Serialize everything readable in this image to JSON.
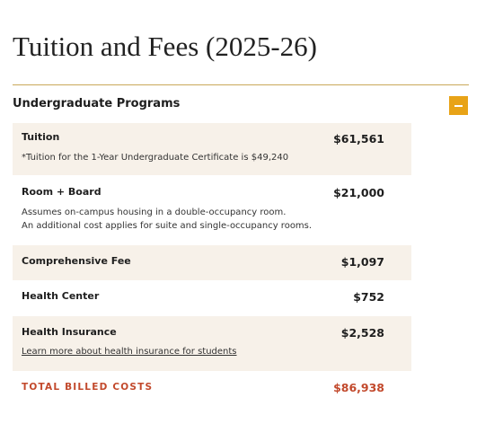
{
  "header": {
    "title": "Tuition and Fees (2025-26)"
  },
  "section": {
    "title": "Undergraduate Programs",
    "rows": [
      {
        "label": "Tuition",
        "amount": "$61,561",
        "notes": [
          "*Tuition for the 1-Year Undergraduate Certificate is $49,240"
        ]
      },
      {
        "label": "Room + Board",
        "amount": "$21,000",
        "notes": [
          "Assumes on-campus housing in a double-occupancy room.",
          "An additional cost applies for suite and single-occupancy rooms."
        ]
      },
      {
        "label": "Comprehensive Fee",
        "amount": "$1,097"
      },
      {
        "label": "Health Center",
        "amount": "$752"
      },
      {
        "label": "Health Insurance",
        "amount": "$2,528",
        "link": "Learn more about health insurance for students"
      }
    ],
    "total": {
      "label": "TOTAL BILLED COSTS",
      "amount": "$86,938"
    }
  }
}
